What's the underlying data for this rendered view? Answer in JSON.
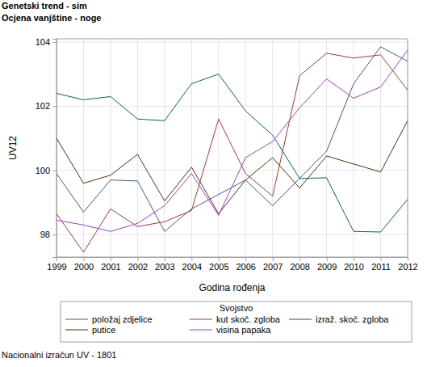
{
  "chart_data": {
    "type": "line",
    "title": "Genetski trend - sim",
    "subtitle": "Ocjena vanjštine - noge",
    "x_label": "Godina rođenja",
    "y_label": "UV12",
    "legend_title": "Svojstvo",
    "footnote": "Nacionalni izračun UV - 1801",
    "x": [
      1999,
      2000,
      2001,
      2002,
      2003,
      2004,
      2005,
      2006,
      2007,
      2008,
      2009,
      2010,
      2011,
      2012
    ],
    "xlim": [
      1999,
      2012
    ],
    "xticks": [
      1999,
      2000,
      2001,
      2002,
      2003,
      2004,
      2005,
      2006,
      2007,
      2008,
      2009,
      2010,
      2011,
      2012
    ],
    "ylim": [
      97.3,
      104.1
    ],
    "yticks": [
      98,
      100,
      102,
      104
    ],
    "grid": true,
    "legend": "bottom",
    "series": [
      {
        "name": "položaj zdjelice",
        "color": "#445694",
        "values": [
          99.9,
          98.7,
          99.7,
          99.67,
          98.1,
          98.8,
          99.25,
          99.7,
          98.9,
          99.75,
          100.6,
          102.7,
          103.85,
          103.4
        ]
      },
      {
        "name": "kut skoč. zgloba",
        "color": "#a23a2e",
        "values": [
          98.65,
          97.45,
          98.8,
          98.25,
          98.4,
          98.75,
          101.6,
          99.9,
          99.2,
          102.95,
          103.65,
          103.5,
          103.6,
          102.5
        ]
      },
      {
        "name": "izraž. skoč. zgloba",
        "color": "#01665e",
        "values": [
          102.4,
          102.2,
          102.3,
          101.6,
          101.55,
          102.7,
          103.0,
          101.85,
          101.1,
          99.75,
          99.77,
          98.1,
          98.08,
          99.1
        ]
      },
      {
        "name": "putice",
        "color": "#543005",
        "values": [
          101.0,
          99.6,
          99.85,
          100.5,
          99.05,
          100.1,
          98.65,
          99.7,
          100.4,
          99.45,
          100.45,
          100.2,
          99.95,
          101.55
        ]
      },
      {
        "name": "visina papaka",
        "color": "#9d3cdb",
        "values": [
          98.45,
          98.3,
          98.1,
          98.35,
          98.9,
          99.9,
          98.6,
          100.4,
          100.9,
          101.95,
          102.85,
          102.25,
          102.6,
          103.75
        ]
      }
    ]
  }
}
